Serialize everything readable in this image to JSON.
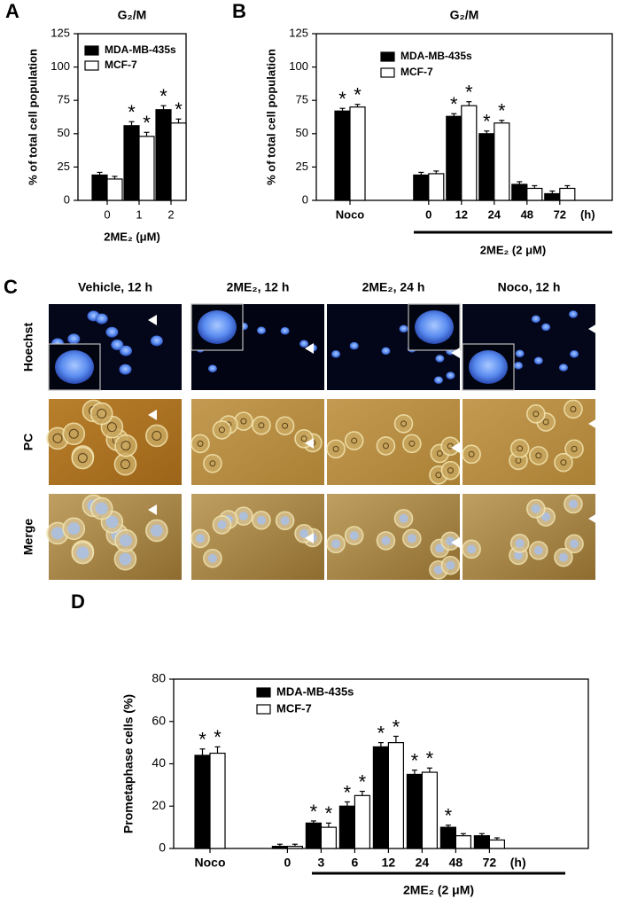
{
  "chart_data": [
    {
      "type": "bar",
      "panel": "A",
      "title": "G₂/M",
      "y_label": "% of total cell population",
      "x_label": "2ME₂ (μM)",
      "categories": [
        "0",
        "1",
        "2"
      ],
      "series": [
        {
          "name": "MDA-MB-435s",
          "color": "#000000",
          "values": [
            19,
            56,
            68
          ],
          "errors": [
            2,
            3,
            3
          ],
          "markers": [
            null,
            "*",
            "*"
          ]
        },
        {
          "name": "MCF-7",
          "color": "#ffffff",
          "values": [
            16,
            48,
            58
          ],
          "errors": [
            2,
            3,
            3
          ],
          "markers": [
            null,
            "*",
            "*"
          ]
        }
      ],
      "ylim": [
        0,
        125
      ],
      "yticks": [
        0,
        25,
        50,
        75,
        100,
        125
      ],
      "legend": "upper left"
    },
    {
      "type": "bar",
      "panel": "B",
      "title": "G₂/M",
      "y_label": "% of total cell population",
      "x_label": "2ME₂ (2 μM)",
      "x_unit": "(h)",
      "categories": [
        "Noco",
        null,
        "0",
        "12",
        "24",
        "48",
        "72"
      ],
      "series": [
        {
          "name": "MDA-MB-435s",
          "color": "#000000",
          "values": [
            67,
            null,
            19,
            63,
            50,
            12,
            5
          ],
          "errors": [
            2,
            null,
            2,
            2,
            2,
            2,
            2
          ],
          "markers": [
            "*",
            null,
            null,
            "*",
            "*",
            null,
            null
          ]
        },
        {
          "name": "MCF-7",
          "color": "#ffffff",
          "values": [
            70,
            null,
            20,
            71,
            58,
            9,
            9
          ],
          "errors": [
            2,
            null,
            2,
            3,
            2,
            2,
            2
          ],
          "markers": [
            "*",
            null,
            null,
            "*",
            "*",
            null,
            null
          ]
        }
      ],
      "ylim": [
        0,
        125
      ],
      "yticks": [
        0,
        25,
        50,
        75,
        100,
        125
      ],
      "legend": "upper center"
    },
    {
      "type": "bar",
      "panel": "D",
      "y_label": "Prometaphase cells (%)",
      "x_label": "2ME₂ (2 μM)",
      "x_unit": "(h)",
      "categories": [
        "Noco",
        null,
        "0",
        "3",
        "6",
        "12",
        "24",
        "48",
        "72"
      ],
      "series": [
        {
          "name": "MDA-MB-435s",
          "color": "#000000",
          "values": [
            44,
            null,
            1,
            12,
            20,
            48,
            35,
            10,
            6
          ],
          "errors": [
            3,
            null,
            1,
            1,
            2,
            2,
            2,
            1,
            1
          ],
          "markers": [
            "*",
            null,
            null,
            "*",
            "*",
            "*",
            "*",
            "*",
            null
          ]
        },
        {
          "name": "MCF-7",
          "color": "#ffffff",
          "values": [
            45,
            null,
            1,
            10,
            25,
            50,
            36,
            6,
            4
          ],
          "errors": [
            3,
            null,
            1,
            2,
            2,
            3,
            2,
            1,
            1
          ],
          "markers": [
            "*",
            null,
            null,
            "*",
            "*",
            "*",
            "*",
            null,
            null
          ]
        }
      ],
      "ylim": [
        0,
        80
      ],
      "yticks": [
        0,
        20,
        40,
        60,
        80
      ],
      "legend": "upper center"
    }
  ],
  "micrographs": {
    "panel": "C",
    "columns": [
      "Vehicle, 12 h",
      "2ME₂, 12 h",
      "2ME₂, 24 h",
      "Noco, 12 h"
    ],
    "rows": [
      "Hoechst",
      "PC",
      "Merge"
    ]
  }
}
